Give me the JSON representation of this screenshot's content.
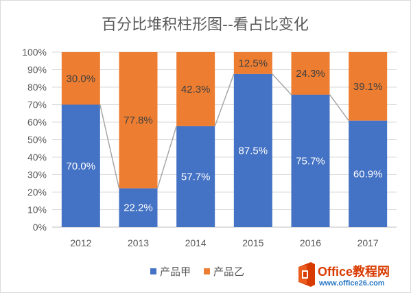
{
  "chart_data": {
    "type": "bar",
    "stacked": true,
    "percent_stacked": true,
    "title": "百分比堆积柱形图--看占比变化",
    "categories": [
      "2012",
      "2013",
      "2014",
      "2015",
      "2016",
      "2017"
    ],
    "series": [
      {
        "name": "产品甲",
        "color": "#4472c4",
        "label_color": "#ffffff",
        "values": [
          70.0,
          22.2,
          57.7,
          87.5,
          75.7,
          60.9
        ],
        "labels": [
          "70.0%",
          "22.2%",
          "57.7%",
          "87.5%",
          "75.7%",
          "60.9%"
        ]
      },
      {
        "name": "产品乙",
        "color": "#ed7d31",
        "label_color": "#404040",
        "values": [
          30.0,
          77.8,
          42.3,
          12.5,
          24.3,
          39.1
        ],
        "labels": [
          "30.0%",
          "77.8%",
          "42.3%",
          "12.5%",
          "24.3%",
          "39.1%"
        ]
      }
    ],
    "series_lines": true,
    "series_line_color": "#a6a6a6",
    "ylim": [
      0,
      100
    ],
    "yticks": [
      "0%",
      "10%",
      "20%",
      "30%",
      "40%",
      "50%",
      "60%",
      "70%",
      "80%",
      "90%",
      "100%"
    ],
    "grid": true,
    "legend_position": "bottom"
  },
  "watermark": {
    "brand": "Office教程网",
    "url": "www.office26.com",
    "icon": "office-logo-icon",
    "colors": {
      "brand": "#d83b01",
      "text": "#2b78c5"
    }
  }
}
